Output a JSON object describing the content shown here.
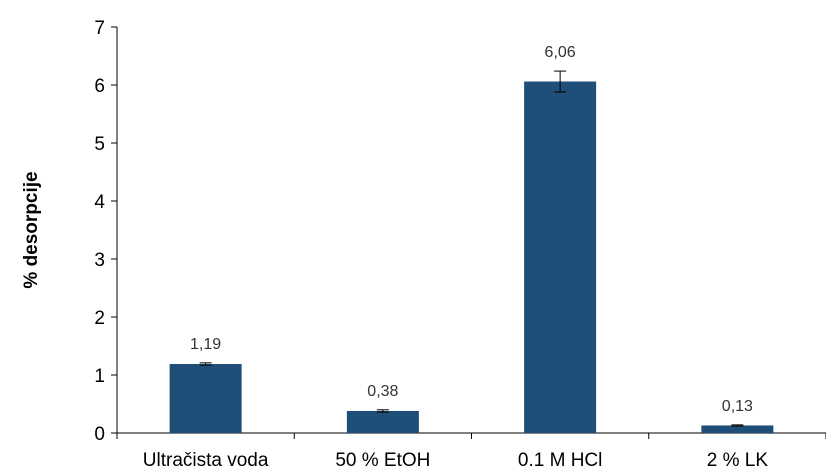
{
  "chart_data": {
    "type": "bar",
    "categories": [
      "Ultračista voda",
      "50 % EtOH",
      "0.1 M HCl",
      "2 % LK"
    ],
    "values": [
      1.19,
      0.38,
      6.06,
      0.13
    ],
    "value_labels": [
      "1,19",
      "0,38",
      "6,06",
      "0,13"
    ],
    "errors": [
      0.02,
      0.02,
      0.18,
      0.01
    ],
    "ylabel": "% desorpcije",
    "xlabel": "",
    "ylim": [
      0,
      7
    ],
    "yticks": [
      "0",
      "1",
      "2",
      "3",
      "4",
      "5",
      "6",
      "7"
    ],
    "bar_color": "#1f4e79",
    "grid": false,
    "legend": "none"
  }
}
